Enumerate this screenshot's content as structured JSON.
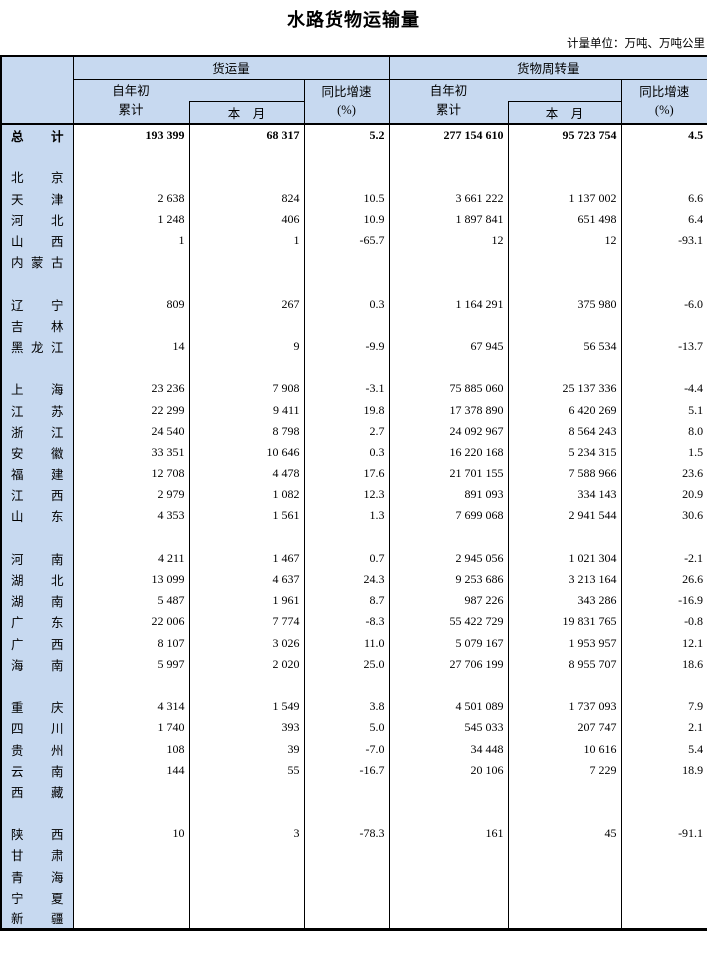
{
  "title": "水路货物运输量",
  "unit_note": "计量单位：万吨、万吨公里",
  "colors": {
    "header_bg": "#c7d9f0",
    "border": "#000000"
  },
  "table": {
    "groups": {
      "freight_volume": "货运量",
      "freight_turnover": "货物周转量"
    },
    "subheaders": {
      "cum_line1": "自年初",
      "cum_line2": "累计",
      "month": "本　月",
      "yoy_line1": "同比增速",
      "yoy_line2": "(%)"
    },
    "rows": [
      {
        "label": "总计",
        "bold": true,
        "values": [
          "193 399",
          "68 317",
          "5.2",
          "277 154 610",
          "95 723 754",
          "4.5"
        ]
      },
      {
        "spacer": true
      },
      {
        "label": "北京",
        "values": [
          "",
          "",
          "",
          "",
          "",
          ""
        ]
      },
      {
        "label": "天津",
        "values": [
          "2 638",
          "824",
          "10.5",
          "3 661 222",
          "1 137 002",
          "6.6"
        ]
      },
      {
        "label": "河北",
        "values": [
          "1 248",
          "406",
          "10.9",
          "1 897 841",
          "651 498",
          "6.4"
        ]
      },
      {
        "label": "山西",
        "values": [
          "1",
          "1",
          "-65.7",
          "12",
          "12",
          "-93.1"
        ]
      },
      {
        "label": "内蒙古",
        "values": [
          "",
          "",
          "",
          "",
          "",
          ""
        ]
      },
      {
        "spacer": true
      },
      {
        "label": "辽宁",
        "values": [
          "809",
          "267",
          "0.3",
          "1 164 291",
          "375 980",
          "-6.0"
        ]
      },
      {
        "label": "吉林",
        "values": [
          "",
          "",
          "",
          "",
          "",
          ""
        ]
      },
      {
        "label": "黑龙江",
        "values": [
          "14",
          "9",
          "-9.9",
          "67 945",
          "56 534",
          "-13.7"
        ]
      },
      {
        "spacer": true
      },
      {
        "label": "上海",
        "values": [
          "23 236",
          "7 908",
          "-3.1",
          "75 885 060",
          "25 137 336",
          "-4.4"
        ]
      },
      {
        "label": "江苏",
        "values": [
          "22 299",
          "9 411",
          "19.8",
          "17 378 890",
          "6 420 269",
          "5.1"
        ]
      },
      {
        "label": "浙江",
        "values": [
          "24 540",
          "8 798",
          "2.7",
          "24 092 967",
          "8 564 243",
          "8.0"
        ]
      },
      {
        "label": "安徽",
        "values": [
          "33 351",
          "10 646",
          "0.3",
          "16 220 168",
          "5 234 315",
          "1.5"
        ]
      },
      {
        "label": "福建",
        "values": [
          "12 708",
          "4 478",
          "17.6",
          "21 701 155",
          "7 588 966",
          "23.6"
        ]
      },
      {
        "label": "江西",
        "values": [
          "2 979",
          "1 082",
          "12.3",
          "891 093",
          "334 143",
          "20.9"
        ]
      },
      {
        "label": "山东",
        "values": [
          "4 353",
          "1 561",
          "1.3",
          "7 699 068",
          "2 941 544",
          "30.6"
        ]
      },
      {
        "spacer": true
      },
      {
        "label": "河南",
        "values": [
          "4 211",
          "1 467",
          "0.7",
          "2 945 056",
          "1 021 304",
          "-2.1"
        ]
      },
      {
        "label": "湖北",
        "values": [
          "13 099",
          "4 637",
          "24.3",
          "9 253 686",
          "3 213 164",
          "26.6"
        ]
      },
      {
        "label": "湖南",
        "values": [
          "5 487",
          "1 961",
          "8.7",
          "987 226",
          "343 286",
          "-16.9"
        ]
      },
      {
        "label": "广东",
        "values": [
          "22 006",
          "7 774",
          "-8.3",
          "55 422 729",
          "19 831 765",
          "-0.8"
        ]
      },
      {
        "label": "广西",
        "values": [
          "8 107",
          "3 026",
          "11.0",
          "5 079 167",
          "1 953 957",
          "12.1"
        ]
      },
      {
        "label": "海南",
        "values": [
          "5 997",
          "2 020",
          "25.0",
          "27 706 199",
          "8 955 707",
          "18.6"
        ]
      },
      {
        "spacer": true
      },
      {
        "label": "重庆",
        "values": [
          "4 314",
          "1 549",
          "3.8",
          "4 501 089",
          "1 737 093",
          "7.9"
        ]
      },
      {
        "label": "四川",
        "values": [
          "1 740",
          "393",
          "5.0",
          "545 033",
          "207 747",
          "2.1"
        ]
      },
      {
        "label": "贵州",
        "values": [
          "108",
          "39",
          "-7.0",
          "34 448",
          "10 616",
          "5.4"
        ]
      },
      {
        "label": "云南",
        "values": [
          "144",
          "55",
          "-16.7",
          "20 106",
          "7 229",
          "18.9"
        ]
      },
      {
        "label": "西藏",
        "values": [
          "",
          "",
          "",
          "",
          "",
          ""
        ]
      },
      {
        "spacer": true
      },
      {
        "label": "陕西",
        "values": [
          "10",
          "3",
          "-78.3",
          "161",
          "45",
          "-91.1"
        ]
      },
      {
        "label": "甘肃",
        "values": [
          "",
          "",
          "",
          "",
          "",
          ""
        ]
      },
      {
        "label": "青海",
        "values": [
          "",
          "",
          "",
          "",
          "",
          ""
        ]
      },
      {
        "label": "宁夏",
        "values": [
          "",
          "",
          "",
          "",
          "",
          ""
        ]
      },
      {
        "label": "新疆",
        "values": [
          "",
          "",
          "",
          "",
          "",
          ""
        ]
      }
    ]
  }
}
